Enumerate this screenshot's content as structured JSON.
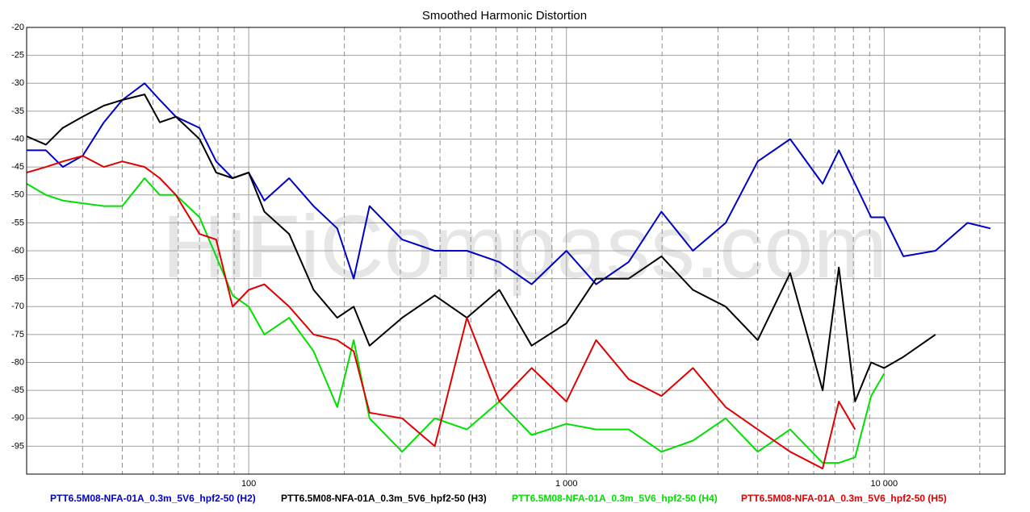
{
  "chart_data": {
    "type": "line",
    "title": "Smoothed Harmonic Distortion",
    "watermark": "HiFiCompass.com",
    "xscale": "log",
    "xlim": [
      20,
      24000
    ],
    "xticks": [
      100,
      {
        "value": 1000,
        "label": "1 000"
      },
      {
        "value": 10000,
        "label": "10 000"
      }
    ],
    "minor_xticks": [
      30,
      40,
      50,
      60,
      70,
      80,
      90,
      200,
      300,
      400,
      500,
      600,
      700,
      800,
      900,
      2000,
      3000,
      4000,
      5000,
      6000,
      7000,
      8000,
      9000,
      20000
    ],
    "ylim": [
      -100,
      -20
    ],
    "yticks": [
      -20,
      -25,
      -30,
      -35,
      -40,
      -45,
      -50,
      -55,
      -60,
      -65,
      -70,
      -75,
      -80,
      -85,
      -90,
      -95
    ],
    "grid": true,
    "legend": "bottom",
    "x": [
      20,
      23,
      26,
      30,
      35,
      40,
      47,
      52.5,
      59,
      70,
      79,
      89,
      100,
      112,
      134,
      160,
      190,
      214,
      240,
      304,
      385,
      486,
      615,
      777,
      1000,
      1240,
      1570,
      1990,
      2500,
      3170,
      4000,
      5060,
      6400,
      7200,
      8100,
      9100,
      10000,
      11500,
      14500,
      18300,
      21600
    ],
    "series": [
      {
        "name": "PTT6.5M08-NFA-01A_0.3m_5V6_hpf2-50 (H2)",
        "color": "#0000c8",
        "values": [
          -42,
          -42,
          -45,
          -43,
          -37,
          -33,
          -30,
          -33,
          -36,
          -38,
          -44,
          -47,
          -46,
          -51,
          -47,
          -52,
          -56,
          -65,
          -52,
          -58,
          -60,
          -60,
          -62,
          -66,
          -60,
          -66,
          -62,
          -53,
          -60,
          -55,
          -44,
          -40,
          -48,
          -42,
          -48,
          -54,
          -54,
          -61,
          -60,
          -55,
          -56
        ]
      },
      {
        "name": "PTT6.5M08-NFA-01A_0.3m_5V6_hpf2-50 (H3)",
        "color": "#000000",
        "values": [
          -39.5,
          -41,
          -38,
          -36,
          -34,
          -33,
          -32,
          -37,
          -36,
          -40,
          -46,
          -47,
          -46,
          -53,
          -57,
          -67,
          -72,
          -70,
          -77,
          -72,
          -68,
          -72,
          -67,
          -77,
          -73,
          -65,
          -65,
          -61,
          -67,
          -70,
          -76,
          -64,
          -85,
          -63,
          -87,
          -80,
          -81,
          -79,
          -75,
          null,
          null
        ]
      },
      {
        "name": "PTT6.5M08-NFA-01A_0.3m_5V6_hpf2-50 (H4)",
        "color": "#00e000",
        "values": [
          -48,
          -50,
          -51,
          -51.5,
          -52,
          -52,
          -47,
          -50,
          -50,
          -54,
          -61,
          -68,
          -70,
          -75,
          -72,
          -78,
          -88,
          -76,
          -90,
          -96,
          -90,
          -92,
          -87,
          -93,
          -91,
          -92,
          -92,
          -96,
          -94,
          -90,
          -96,
          -92,
          -98,
          -98,
          -97,
          -86,
          -82,
          null,
          null,
          null,
          null
        ]
      },
      {
        "name": "PTT6.5M08-NFA-01A_0.3m_5V6_hpf2-50 (H5)",
        "color": "#e00000",
        "values": [
          -46,
          -45,
          -44,
          -43,
          -45,
          -44,
          -45,
          -47,
          -50,
          -57,
          -58,
          -70,
          -67,
          -66,
          -70,
          -75,
          -76,
          -78,
          -89,
          -90,
          -95,
          -72,
          -87,
          -81,
          -87,
          -76,
          -83,
          -86,
          -81,
          -88,
          -92,
          -96,
          -99,
          -87,
          -92,
          null,
          null,
          null,
          null,
          null,
          null
        ]
      }
    ]
  }
}
